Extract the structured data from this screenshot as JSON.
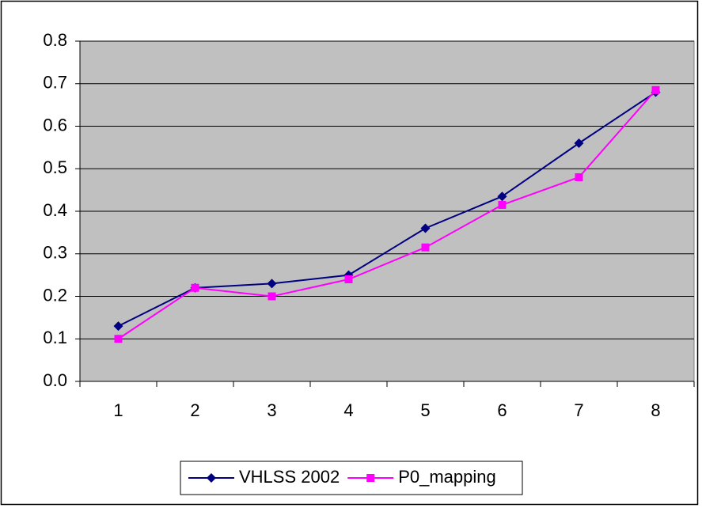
{
  "chart_data": {
    "type": "line",
    "categories": [
      "1",
      "2",
      "3",
      "4",
      "5",
      "6",
      "7",
      "8"
    ],
    "series": [
      {
        "name": "VHLSS 2002",
        "color": "#000080",
        "marker": "diamond",
        "values": [
          0.13,
          0.22,
          0.23,
          0.25,
          0.36,
          0.435,
          0.56,
          0.68
        ]
      },
      {
        "name": "P0_mapping",
        "color": "#ff00ff",
        "marker": "square",
        "values": [
          0.1,
          0.22,
          0.2,
          0.24,
          0.315,
          0.415,
          0.48,
          0.685
        ]
      }
    ],
    "ylim": [
      0,
      0.8
    ],
    "yticks": [
      {
        "value": 0,
        "label": "0.0"
      },
      0.1,
      0.2,
      0.3,
      0.4,
      0.5,
      0.6,
      0.7,
      0.8
    ],
    "grid": true,
    "plot_background": "#c0c0c0",
    "legend": "bottom"
  }
}
